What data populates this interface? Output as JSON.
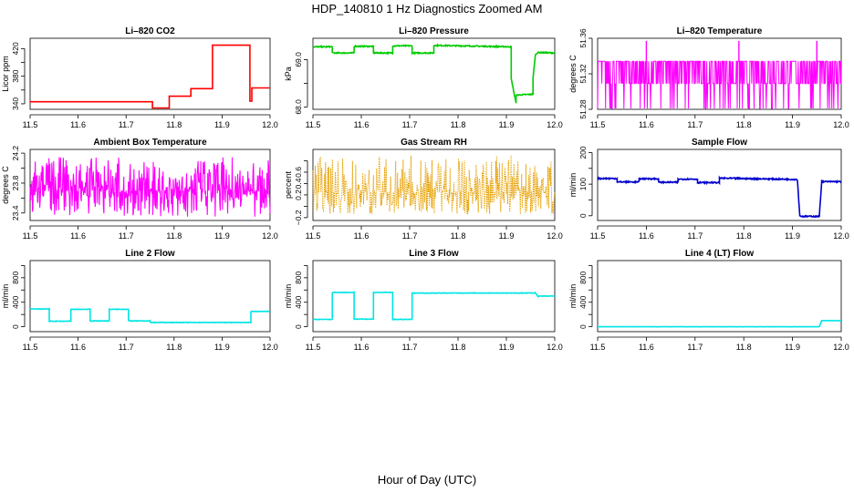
{
  "figure": {
    "title": "HDP_140810  1 Hz Diagnostics Zoomed AM",
    "xlabel": "Hour of Day (UTC)"
  },
  "chart_data": [
    {
      "type": "line",
      "title": "Li–820 CO2",
      "ylabel": "Licor ppm",
      "color": "#ff0000",
      "xlim": [
        11.5,
        12.0
      ],
      "ylim": [
        332,
        435
      ],
      "x_ticks": [
        11.5,
        11.6,
        11.7,
        11.8,
        11.9,
        12.0
      ],
      "y_ticks": [
        340,
        360,
        380,
        400,
        420
      ],
      "y_tick_labels": [
        "340",
        "",
        "380",
        "",
        "420"
      ],
      "noise": 0,
      "series": [
        {
          "x": [
            11.5,
            11.755,
            11.755,
            11.79,
            11.79,
            11.835,
            11.835,
            11.88,
            11.88,
            11.958,
            11.958,
            11.962,
            11.962,
            12.0
          ],
          "y": [
            343,
            343,
            334,
            334,
            351,
            351,
            362,
            362,
            425,
            425,
            344,
            344,
            363,
            363
          ]
        }
      ]
    },
    {
      "type": "line",
      "title": "Li–820 Pressure",
      "ylabel": "kPa",
      "color": "#00cc00",
      "xlim": [
        11.5,
        12.0
      ],
      "ylim": [
        67.95,
        69.45
      ],
      "x_ticks": [
        11.5,
        11.6,
        11.7,
        11.8,
        11.9,
        12.0
      ],
      "y_ticks": [
        68.0,
        68.5,
        69.0
      ],
      "y_tick_labels": [
        "68.0",
        "",
        "69.0"
      ],
      "noise": 0.012,
      "series": [
        {
          "x": [
            11.5,
            11.54,
            11.54,
            11.585,
            11.585,
            11.625,
            11.625,
            11.665,
            11.665,
            11.705,
            11.705,
            11.75,
            11.75,
            11.91,
            11.91,
            11.92,
            11.92,
            11.955,
            11.955,
            11.96,
            11.965,
            12.0
          ],
          "y": [
            69.27,
            69.27,
            69.14,
            69.14,
            69.28,
            69.28,
            69.14,
            69.14,
            69.29,
            69.29,
            69.14,
            69.14,
            69.3,
            69.27,
            68.6,
            68.08,
            68.25,
            68.27,
            68.6,
            69.1,
            69.15,
            69.14
          ]
        }
      ]
    },
    {
      "type": "line",
      "title": "Li–820 Temperature",
      "ylabel": "degrees C",
      "color": "#ff00ff",
      "xlim": [
        11.5,
        12.0
      ],
      "ylim": [
        51.28,
        51.36
      ],
      "x_ticks": [
        11.5,
        11.6,
        11.7,
        11.8,
        11.9,
        12.0
      ],
      "y_ticks": [
        51.28,
        51.32,
        51.36
      ],
      "y_tick_labels": [
        "51.28",
        "51.32",
        "51.36"
      ],
      "discrete_levels": [
        51.281,
        51.309,
        51.334
      ],
      "level_weights": [
        0.12,
        0.35,
        0.53
      ],
      "spikes_x": [
        11.6,
        11.79,
        11.95
      ],
      "spike_y": 51.357
    },
    {
      "type": "line",
      "title": "Ambient Box Temperature",
      "ylabel": "degrees C",
      "color": "#ff00ff",
      "xlim": [
        11.5,
        12.0
      ],
      "ylim": [
        23.3,
        24.25
      ],
      "x_ticks": [
        11.5,
        11.6,
        11.7,
        11.8,
        11.9,
        12.0
      ],
      "y_ticks": [
        23.4,
        23.6,
        23.8,
        24.0,
        24.2
      ],
      "y_tick_labels": [
        "23.4",
        "",
        "23.8",
        "",
        "24.2"
      ],
      "noise_band": [
        23.35,
        24.15
      ],
      "center": 23.7
    },
    {
      "type": "scatter",
      "title": "Gas Stream RH",
      "ylabel": "percent",
      "color": "#e6a000",
      "xlim": [
        11.5,
        12.0
      ],
      "ylim": [
        -0.25,
        1.0
      ],
      "x_ticks": [
        11.5,
        11.6,
        11.7,
        11.8,
        11.9,
        12.0
      ],
      "y_ticks": [
        -0.2,
        0.0,
        0.2,
        0.4,
        0.6,
        0.8
      ],
      "y_tick_labels": [
        "−0.2",
        "",
        "0.2",
        "0.4",
        "0.6",
        ""
      ],
      "noise_band": [
        -0.15,
        0.9
      ],
      "center": 0.25
    },
    {
      "type": "line",
      "title": "Sample Flow",
      "ylabel": "ml/min",
      "color": "#0000cc",
      "xlim": [
        11.5,
        12.0
      ],
      "ylim": [
        -15,
        210
      ],
      "x_ticks": [
        11.5,
        11.6,
        11.7,
        11.8,
        11.9,
        12.0
      ],
      "y_ticks": [
        0,
        50,
        100,
        150,
        200
      ],
      "y_tick_labels": [
        "0",
        "",
        "100",
        "",
        "200"
      ],
      "noise": 2,
      "series": [
        {
          "x": [
            11.5,
            11.54,
            11.54,
            11.585,
            11.585,
            11.625,
            11.625,
            11.665,
            11.665,
            11.705,
            11.705,
            11.75,
            11.75,
            11.91,
            11.915,
            11.92,
            11.955,
            11.96,
            11.965,
            12.0
          ],
          "y": [
            118,
            118,
            107,
            107,
            117,
            117,
            106,
            106,
            116,
            116,
            105,
            105,
            119,
            115,
            0,
            -2,
            -2,
            110,
            108,
            108
          ]
        }
      ]
    },
    {
      "type": "line",
      "title": "Line 2 Flow",
      "ylabel": "ml/min",
      "color": "#00e5e5",
      "xlim": [
        11.5,
        12.0
      ],
      "ylim": [
        -80,
        1080
      ],
      "x_ticks": [
        11.5,
        11.6,
        11.7,
        11.8,
        11.9,
        12.0
      ],
      "y_ticks": [
        0,
        200,
        400,
        600,
        800,
        1000
      ],
      "y_tick_labels": [
        "0",
        "",
        "400",
        "",
        "800",
        ""
      ],
      "noise": 4,
      "series": [
        {
          "x": [
            11.5,
            11.54,
            11.54,
            11.585,
            11.585,
            11.625,
            11.625,
            11.665,
            11.665,
            11.705,
            11.705,
            11.75,
            11.75,
            11.96,
            11.96,
            12.0
          ],
          "y": [
            290,
            290,
            90,
            90,
            285,
            285,
            95,
            95,
            285,
            285,
            95,
            95,
            70,
            70,
            250,
            250
          ]
        }
      ]
    },
    {
      "type": "line",
      "title": "Line 3 Flow",
      "ylabel": "ml/min",
      "color": "#00e5e5",
      "xlim": [
        11.5,
        12.0
      ],
      "ylim": [
        -80,
        1080
      ],
      "x_ticks": [
        11.5,
        11.6,
        11.7,
        11.8,
        11.9,
        12.0
      ],
      "y_ticks": [
        0,
        200,
        400,
        600,
        800,
        1000
      ],
      "y_tick_labels": [
        "0",
        "",
        "400",
        "",
        "800",
        ""
      ],
      "noise": 4,
      "series": [
        {
          "x": [
            11.5,
            11.54,
            11.54,
            11.585,
            11.585,
            11.625,
            11.625,
            11.665,
            11.665,
            11.705,
            11.705,
            11.96,
            11.965,
            12.0
          ],
          "y": [
            120,
            120,
            560,
            560,
            125,
            125,
            560,
            560,
            120,
            120,
            550,
            550,
            500,
            500
          ]
        }
      ]
    },
    {
      "type": "line",
      "title": "Line 4 (LT) Flow",
      "ylabel": "ml/min",
      "color": "#00e5e5",
      "xlim": [
        11.5,
        12.0
      ],
      "ylim": [
        -80,
        1080
      ],
      "x_ticks": [
        11.5,
        11.6,
        11.7,
        11.8,
        11.9,
        12.0
      ],
      "y_ticks": [
        0,
        200,
        400,
        600,
        800,
        1000
      ],
      "y_tick_labels": [
        "0",
        "",
        "400",
        "",
        "800",
        ""
      ],
      "noise": 1,
      "series": [
        {
          "x": [
            11.5,
            11.955,
            11.96,
            12.0
          ],
          "y": [
            0,
            0,
            100,
            100
          ]
        }
      ]
    }
  ]
}
